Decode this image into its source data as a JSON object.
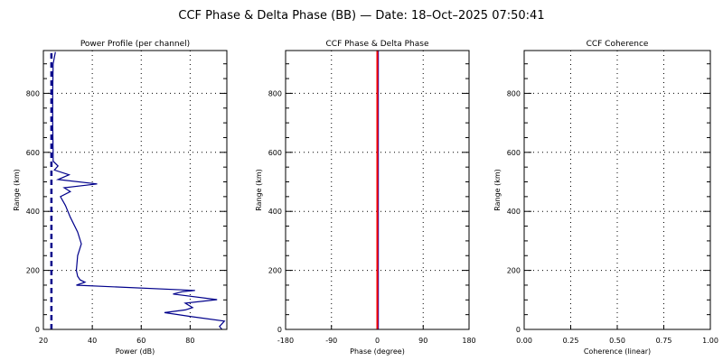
{
  "title": "CCF Phase & Delta Phase (BB) — Date: 18–Oct–2025 07:50:41",
  "chart_data": [
    {
      "type": "line",
      "title": "Power Profile (per channel)",
      "xlabel": "Power (dB)",
      "ylabel": "Range (km)",
      "xlim": [
        20,
        95
      ],
      "ylim": [
        0,
        945
      ],
      "xticks": [
        20,
        40,
        60,
        80
      ],
      "yticks": [
        0,
        200,
        400,
        600,
        800
      ],
      "grid": true,
      "series": [
        {
          "style": "solid",
          "color": "#00008b",
          "points": [
            [
              93,
              0
            ],
            [
              92,
              10
            ],
            [
              94,
              28
            ],
            [
              80,
              44
            ],
            [
              69.5,
              57
            ],
            [
              78,
              66
            ],
            [
              81,
              74
            ],
            [
              78,
              89
            ],
            [
              91,
              101
            ],
            [
              73,
              120
            ],
            [
              77,
              128
            ],
            [
              82,
              132
            ],
            [
              33.5,
              150
            ],
            [
              37,
              160
            ],
            [
              35,
              168
            ],
            [
              34,
              180
            ],
            [
              33.5,
              200
            ],
            [
              34,
              250
            ],
            [
              35.5,
              290
            ],
            [
              34,
              330
            ],
            [
              31,
              380
            ],
            [
              29,
              420
            ],
            [
              27,
              450
            ],
            [
              31,
              467
            ],
            [
              28.5,
              480
            ],
            [
              42,
              493
            ],
            [
              26,
              508
            ],
            [
              30.5,
              524
            ],
            [
              24.5,
              540
            ],
            [
              26,
              554
            ],
            [
              24,
              570
            ],
            [
              24,
              600
            ],
            [
              23.8,
              700
            ],
            [
              23.8,
              800
            ],
            [
              24,
              900
            ],
            [
              24.9,
              940
            ]
          ]
        },
        {
          "style": "dashed",
          "color": "#00008b",
          "points": [
            [
              23.3,
              0
            ],
            [
              23.3,
              940
            ]
          ]
        }
      ]
    },
    {
      "type": "line",
      "title": "CCF Phase & Delta Phase",
      "xlabel": "Phase (degree)",
      "ylabel": "Range (km)",
      "xlim": [
        -180,
        180
      ],
      "ylim": [
        0,
        945
      ],
      "xticks": [
        -180,
        -90,
        0,
        90,
        180
      ],
      "yticks": [
        0,
        200,
        400,
        600,
        800
      ],
      "grid": true,
      "series": [
        {
          "color": "#0000cc",
          "points": [
            [
              2,
              0
            ],
            [
              2,
              945
            ]
          ]
        },
        {
          "color": "#ff0000",
          "points": [
            [
              0,
              0
            ],
            [
              0,
              945
            ]
          ]
        }
      ]
    },
    {
      "type": "line",
      "title": "CCF Coherence",
      "xlabel": "Coherence (linear)",
      "ylabel": "Range (km)",
      "xlim": [
        0,
        1
      ],
      "ylim": [
        0,
        945
      ],
      "xticks": [
        "0.00",
        "0.25",
        "0.50",
        "0.75",
        "1.00"
      ],
      "yticks": [
        0,
        200,
        400,
        600,
        800
      ],
      "grid": true,
      "series": []
    }
  ]
}
